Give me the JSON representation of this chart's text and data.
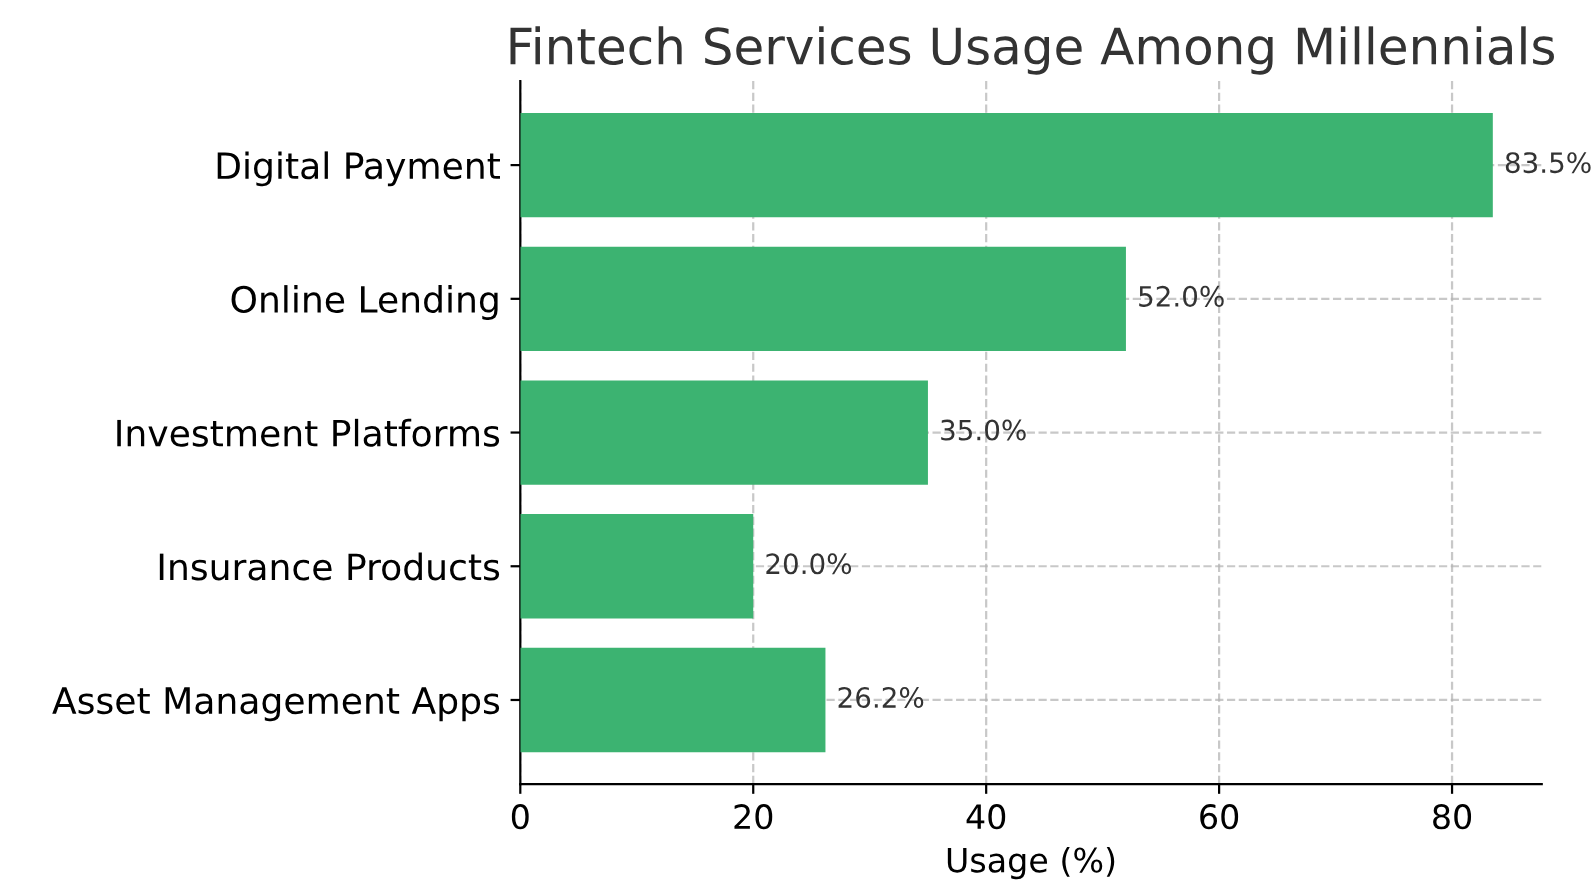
{
  "chart_data": {
    "type": "bar",
    "orientation": "horizontal",
    "title": "Fintech Services Usage Among Millennials",
    "xlabel": "Usage (%)",
    "categories": [
      "Digital Payment",
      "Online Lending",
      "Investment Platforms",
      "Insurance Products",
      "Asset Management Apps"
    ],
    "values": [
      83.5,
      52.0,
      35.0,
      20.0,
      26.2
    ],
    "color": "#3cb371",
    "value_labels": [
      "83.5%",
      "52.0%",
      "35.0%",
      "20.0%",
      "26.2%"
    ],
    "xlim": [
      0,
      87.7
    ],
    "xticks": [
      0,
      20,
      40,
      60,
      80
    ],
    "grid": true,
    "line_style": "dashed"
  }
}
